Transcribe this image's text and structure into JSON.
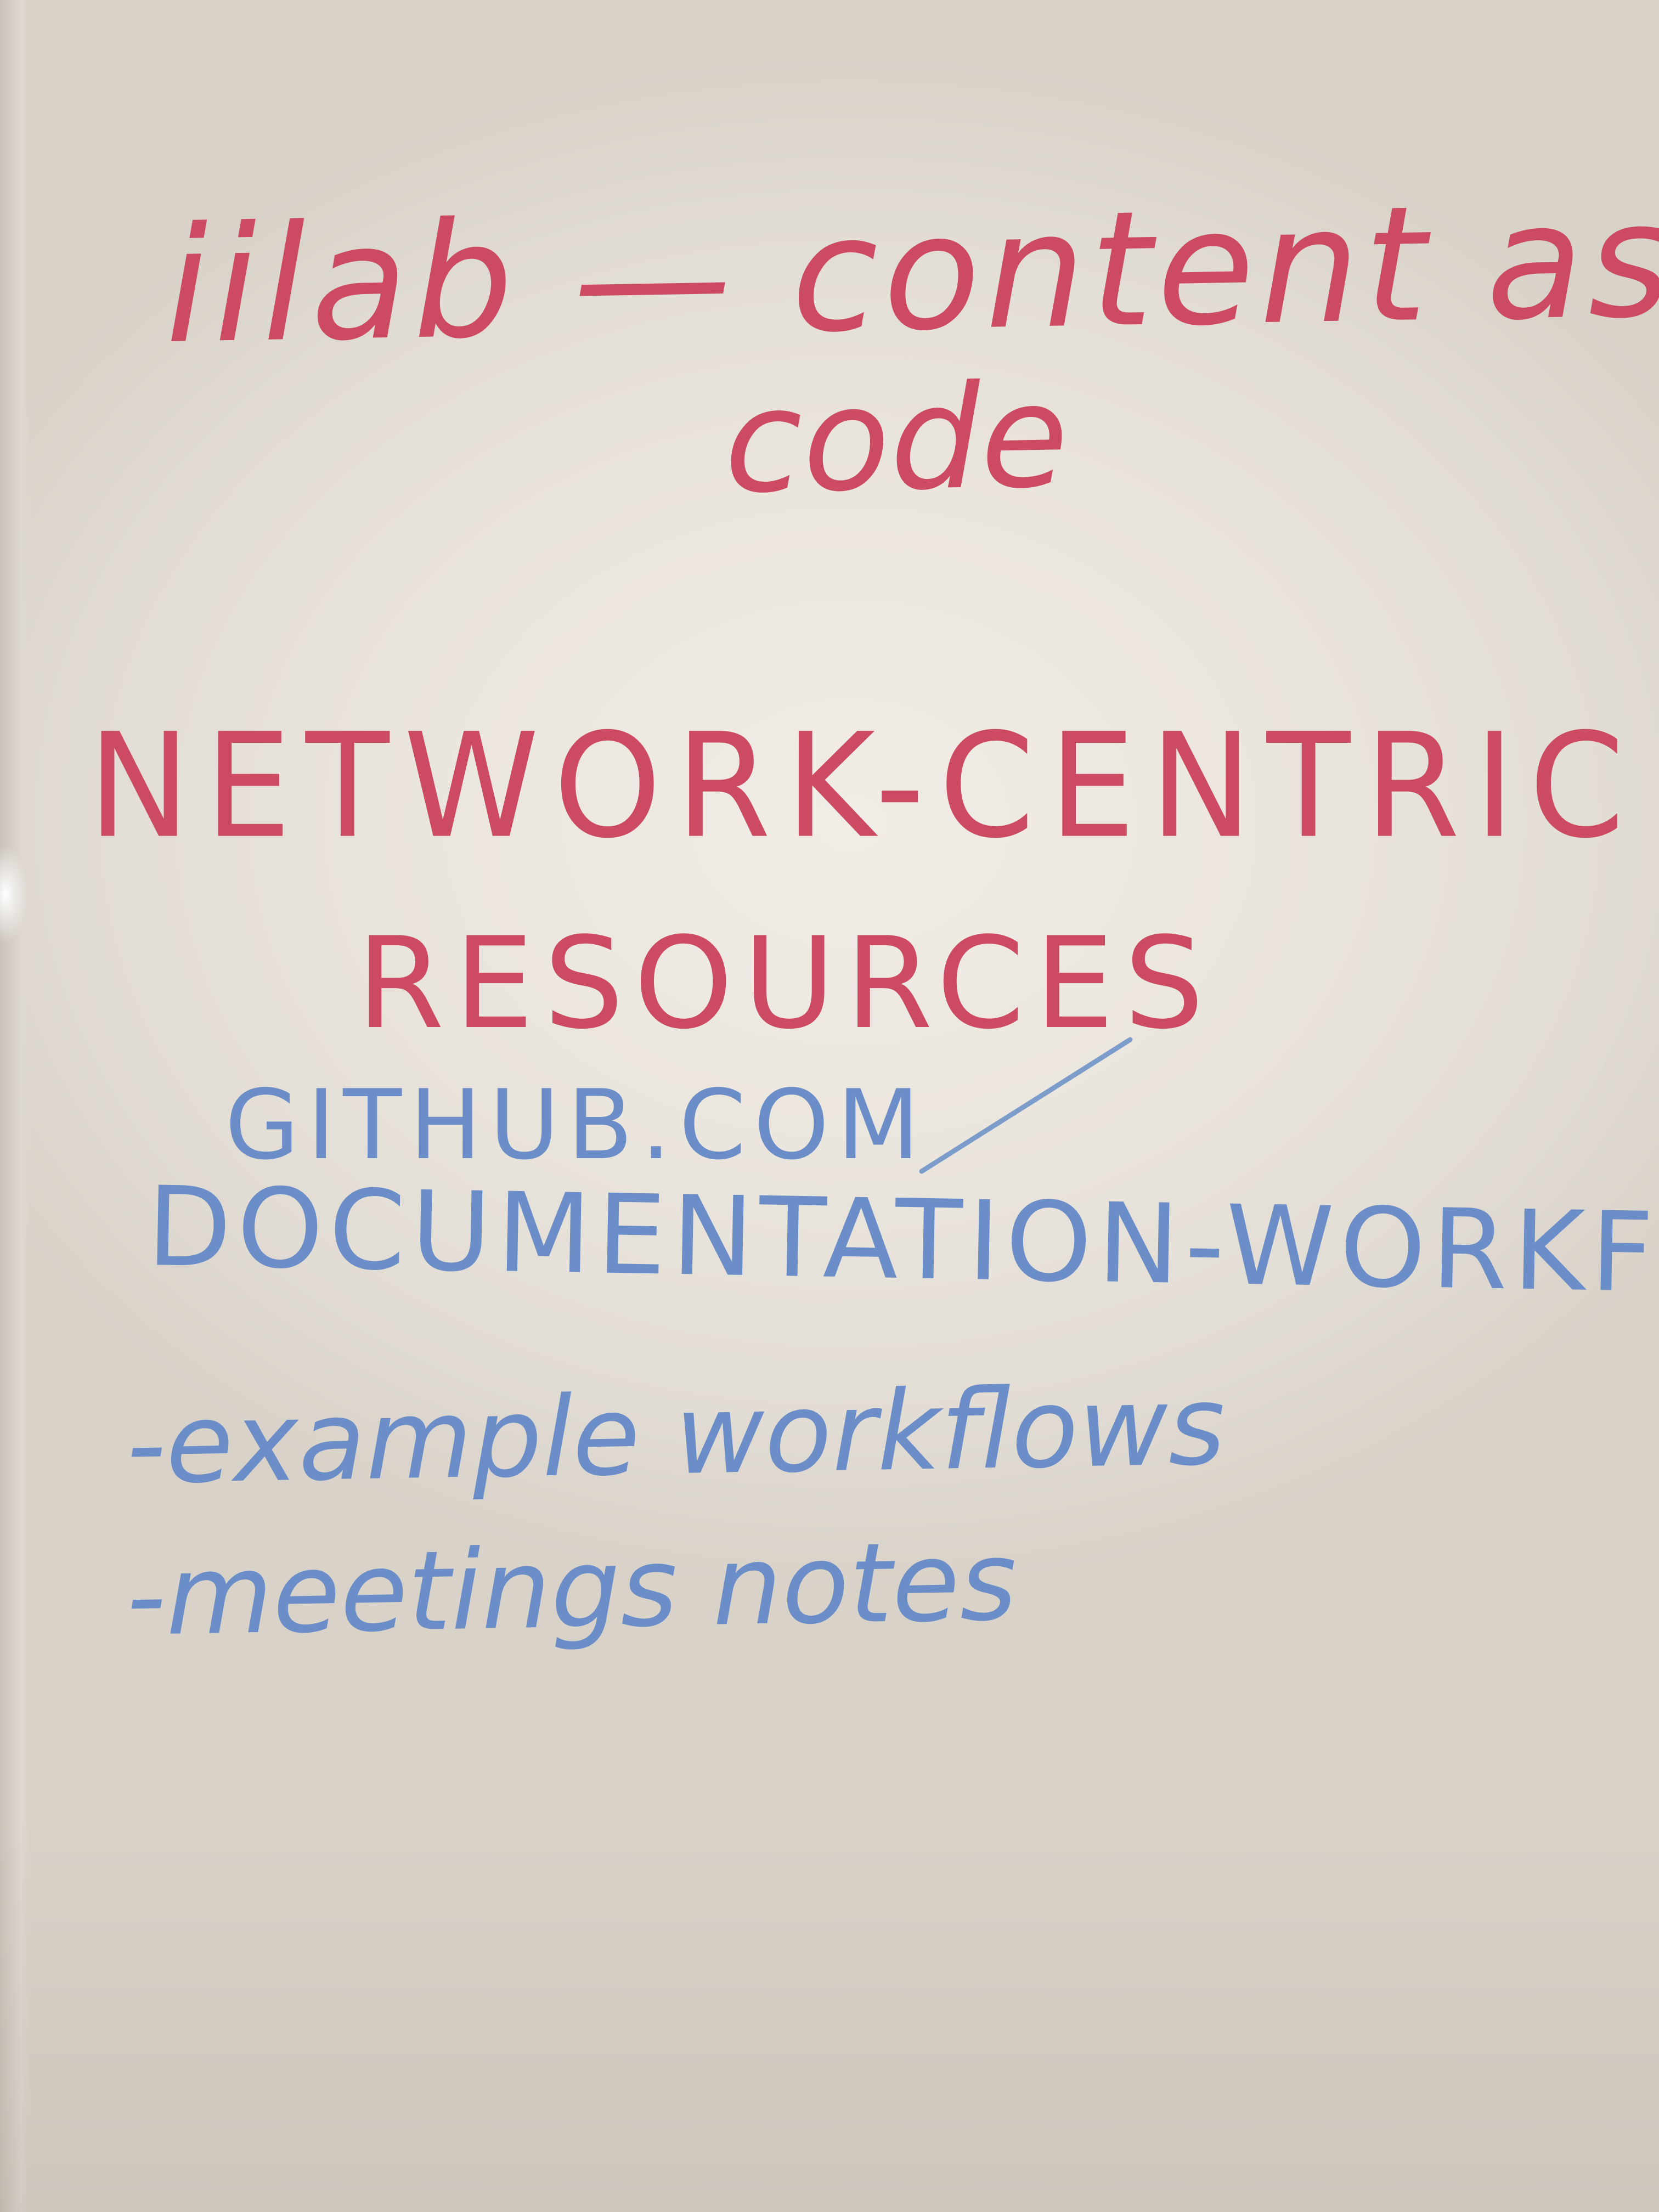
{
  "flipchart": {
    "title_line1": "iilab — content as",
    "title_line2": "code",
    "heading_line1": "NETWORK-CENTRIC",
    "heading_line2": "RESOURCES",
    "link": "GITHUB.COM",
    "repo": "DOCUMENTATION-WORKFLOWS",
    "bullets": [
      "-example workflows",
      "-meetings notes"
    ]
  },
  "colors": {
    "red_marker": "#cc4b63",
    "blue_marker": "#6b8ec8",
    "paper": "#ebe6de"
  }
}
